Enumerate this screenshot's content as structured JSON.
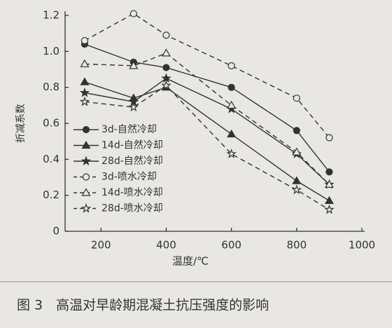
{
  "chart_data": {
    "type": "line",
    "caption": "图 3　高温对早龄期混凝土抗压强度的影响",
    "xlabel": "温度/℃",
    "ylabel": "折减系数",
    "x": [
      150,
      300,
      400,
      600,
      800,
      900
    ],
    "series": [
      {
        "name": "3d-自然冷却",
        "color": "#333333",
        "marker": "circle",
        "filled": true,
        "dashed": false,
        "values": [
          1.04,
          0.94,
          0.91,
          0.8,
          0.56,
          0.33
        ]
      },
      {
        "name": "14d-自然冷却",
        "color": "#333333",
        "marker": "triangle",
        "filled": true,
        "dashed": false,
        "values": [
          0.83,
          0.74,
          0.8,
          0.54,
          0.28,
          0.17
        ]
      },
      {
        "name": "28d-自然冷却",
        "color": "#333333",
        "marker": "star",
        "filled": true,
        "dashed": false,
        "values": [
          0.77,
          0.72,
          0.85,
          0.68,
          0.43,
          0.26
        ]
      },
      {
        "name": "3d-喷水冷却",
        "color": "#333333",
        "marker": "circle",
        "filled": false,
        "dashed": true,
        "values": [
          1.06,
          1.21,
          1.09,
          0.92,
          0.74,
          0.52
        ]
      },
      {
        "name": "14d-喷水冷却",
        "color": "#333333",
        "marker": "triangle",
        "filled": false,
        "dashed": true,
        "values": [
          0.93,
          0.92,
          0.99,
          0.7,
          0.44,
          0.26
        ]
      },
      {
        "name": "28d-喷水冷却",
        "color": "#333333",
        "marker": "star",
        "filled": false,
        "dashed": true,
        "values": [
          0.72,
          0.69,
          0.81,
          0.43,
          0.23,
          0.12
        ]
      }
    ],
    "xlim": [
      90,
      1000
    ],
    "xticks": [
      200,
      400,
      600,
      800,
      1000
    ],
    "ylim": [
      0,
      1.2
    ],
    "yticks": [
      0,
      0.2,
      0.4,
      0.6,
      0.8,
      {
        "value": 1,
        "label": "1.0"
      },
      1.2
    ],
    "legend": "lower-left"
  }
}
